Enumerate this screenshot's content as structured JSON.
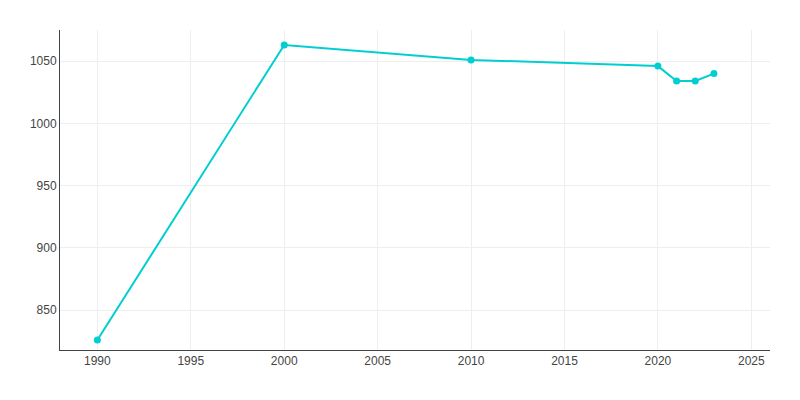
{
  "chart_data": {
    "type": "line",
    "x": [
      1990,
      2000,
      2010,
      2020,
      2021,
      2022,
      2023
    ],
    "values": [
      826,
      1063,
      1051,
      1046,
      1034,
      1034,
      1040
    ],
    "color": "#00CED1",
    "marker": "circle",
    "xlim": [
      1988,
      2026
    ],
    "ylim": [
      818,
      1075
    ],
    "xticks": [
      1990,
      1995,
      2000,
      2005,
      2010,
      2015,
      2020,
      2025
    ],
    "yticks": [
      850,
      900,
      950,
      1000,
      1050
    ],
    "grid": true
  }
}
